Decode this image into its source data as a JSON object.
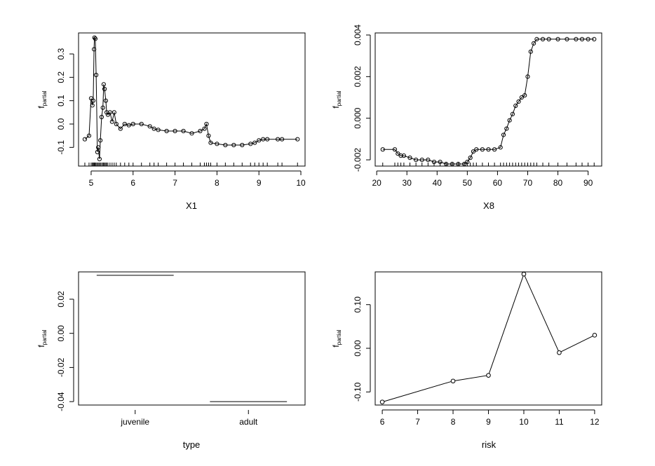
{
  "chart_data": [
    {
      "type": "scatter",
      "xlabel": "X1",
      "ylabel": "f",
      "ylabel_sub": "partial",
      "xlim": [
        4.7,
        10.1
      ],
      "ylim": [
        -0.18,
        0.39
      ],
      "xticks": [
        "5",
        "6",
        "7",
        "8",
        "9",
        "10"
      ],
      "yticks": [
        "-0.1",
        "0.0",
        "0.1",
        "0.2",
        "0.3"
      ],
      "rug": true,
      "points": [
        [
          4.85,
          -0.065
        ],
        [
          4.95,
          -0.05
        ],
        [
          5.0,
          0.11
        ],
        [
          5.03,
          0.08
        ],
        [
          5.05,
          0.1
        ],
        [
          5.07,
          0.32
        ],
        [
          5.08,
          0.37
        ],
        [
          5.1,
          0.365
        ],
        [
          5.12,
          0.21
        ],
        [
          5.15,
          -0.12
        ],
        [
          5.17,
          -0.1
        ],
        [
          5.2,
          -0.15
        ],
        [
          5.22,
          -0.07
        ],
        [
          5.25,
          0.03
        ],
        [
          5.28,
          0.07
        ],
        [
          5.3,
          0.17
        ],
        [
          5.32,
          0.15
        ],
        [
          5.35,
          0.1
        ],
        [
          5.37,
          0.05
        ],
        [
          5.4,
          0.04
        ],
        [
          5.45,
          0.05
        ],
        [
          5.5,
          0.01
        ],
        [
          5.55,
          0.05
        ],
        [
          5.6,
          0.0
        ],
        [
          5.7,
          -0.02
        ],
        [
          5.8,
          0.0
        ],
        [
          5.9,
          -0.005
        ],
        [
          6.0,
          0.0
        ],
        [
          6.2,
          0.0
        ],
        [
          6.4,
          -0.01
        ],
        [
          6.5,
          -0.02
        ],
        [
          6.6,
          -0.025
        ],
        [
          6.8,
          -0.03
        ],
        [
          7.0,
          -0.03
        ],
        [
          7.2,
          -0.03
        ],
        [
          7.4,
          -0.04
        ],
        [
          7.6,
          -0.03
        ],
        [
          7.7,
          -0.02
        ],
        [
          7.75,
          0.0
        ],
        [
          7.8,
          -0.05
        ],
        [
          7.85,
          -0.08
        ],
        [
          8.0,
          -0.085
        ],
        [
          8.2,
          -0.09
        ],
        [
          8.4,
          -0.09
        ],
        [
          8.6,
          -0.09
        ],
        [
          8.8,
          -0.085
        ],
        [
          8.9,
          -0.08
        ],
        [
          9.0,
          -0.07
        ],
        [
          9.1,
          -0.065
        ],
        [
          9.2,
          -0.065
        ],
        [
          9.45,
          -0.065
        ],
        [
          9.55,
          -0.065
        ],
        [
          9.92,
          -0.065
        ]
      ]
    },
    {
      "type": "scatter",
      "xlabel": "X8",
      "ylabel": "f",
      "ylabel_sub": "partial",
      "xlim": [
        19.5,
        94.5
      ],
      "ylim": [
        -0.0023,
        0.0041
      ],
      "xticks": [
        "20",
        "30",
        "40",
        "50",
        "60",
        "70",
        "80",
        "90"
      ],
      "yticks": [
        "-0.002",
        "0.000",
        "0.002",
        "0.004"
      ],
      "rug": true,
      "points": [
        [
          22,
          -0.0015
        ],
        [
          26,
          -0.0015
        ],
        [
          27,
          -0.0017
        ],
        [
          28,
          -0.0018
        ],
        [
          29,
          -0.0018
        ],
        [
          31,
          -0.0019
        ],
        [
          33,
          -0.002
        ],
        [
          35,
          -0.002
        ],
        [
          37,
          -0.002
        ],
        [
          39,
          -0.0021
        ],
        [
          41,
          -0.0021
        ],
        [
          43,
          -0.0022
        ],
        [
          45,
          -0.0022
        ],
        [
          47,
          -0.0022
        ],
        [
          49,
          -0.0022
        ],
        [
          50,
          -0.0021
        ],
        [
          51,
          -0.0019
        ],
        [
          52,
          -0.0016
        ],
        [
          53,
          -0.0015
        ],
        [
          55,
          -0.0015
        ],
        [
          57,
          -0.0015
        ],
        [
          59,
          -0.0015
        ],
        [
          61,
          -0.0014
        ],
        [
          62,
          -0.0008
        ],
        [
          63,
          -0.0005
        ],
        [
          64,
          -0.0001
        ],
        [
          65,
          0.0002
        ],
        [
          66,
          0.0006
        ],
        [
          67,
          0.0008
        ],
        [
          68,
          0.001
        ],
        [
          69,
          0.0011
        ],
        [
          70,
          0.002
        ],
        [
          71,
          0.0032
        ],
        [
          72,
          0.0036
        ],
        [
          73,
          0.0038
        ],
        [
          75,
          0.0038
        ],
        [
          77,
          0.0038
        ],
        [
          80,
          0.0038
        ],
        [
          83,
          0.0038
        ],
        [
          86,
          0.0038
        ],
        [
          88,
          0.0038
        ],
        [
          90,
          0.0038
        ],
        [
          92,
          0.0038
        ]
      ]
    },
    {
      "type": "bar",
      "xlabel": "type",
      "ylabel": "f",
      "ylabel_sub": "partial",
      "ylim": [
        -0.042,
        0.036
      ],
      "yticks": [
        "-0.04",
        "-0.02",
        "0.00",
        "0.02"
      ],
      "categories": [
        "juvenile",
        "adult"
      ],
      "values": [
        0.034,
        -0.04
      ]
    },
    {
      "type": "line",
      "xlabel": "risk",
      "ylabel": "f",
      "ylabel_sub": "partial",
      "xlim": [
        5.8,
        12.2
      ],
      "ylim": [
        -0.13,
        0.175
      ],
      "xticks": [
        "6",
        "7",
        "8",
        "9",
        "10",
        "11",
        "12"
      ],
      "yticks": [
        "-0.10",
        "0.00",
        "0.10"
      ],
      "x": [
        6,
        8,
        9,
        10,
        11,
        12
      ],
      "y": [
        -0.123,
        -0.075,
        -0.062,
        0.17,
        -0.01,
        0.03
      ]
    }
  ]
}
